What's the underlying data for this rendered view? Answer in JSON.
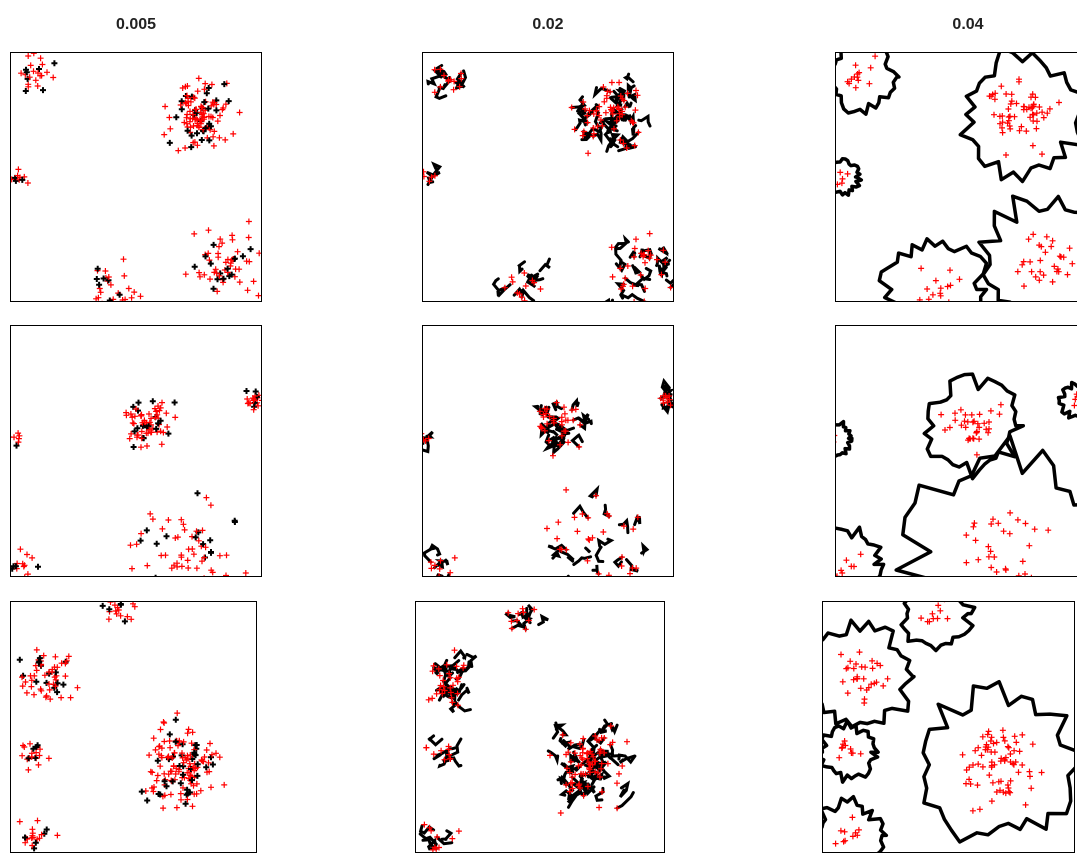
{
  "columns": [
    {
      "title": "0.005"
    },
    {
      "title": "0.02"
    },
    {
      "title": "0.04"
    }
  ]
}
